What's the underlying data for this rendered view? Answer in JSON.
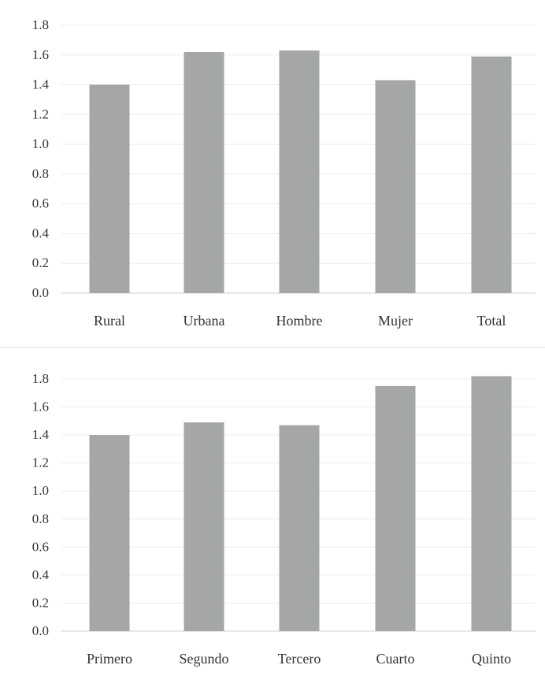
{
  "chart_data": [
    {
      "type": "bar",
      "categories": [
        "Rural",
        "Urbana",
        "Hombre",
        "Mujer",
        "Total"
      ],
      "values": [
        1.4,
        1.62,
        1.63,
        1.43,
        1.59
      ],
      "yticks": [
        "0.0",
        "0.2",
        "0.4",
        "0.6",
        "0.8",
        "1.0",
        "1.2",
        "1.4",
        "1.6",
        "1.8"
      ],
      "ylim": [
        0,
        1.8
      ],
      "grid": true,
      "bar_color": "#a5a6a8"
    },
    {
      "type": "bar",
      "categories": [
        "Primero",
        "Segundo",
        "Tercero",
        "Cuarto",
        "Quinto"
      ],
      "values": [
        1.4,
        1.49,
        1.47,
        1.75,
        1.82
      ],
      "yticks": [
        "0.0",
        "0.2",
        "0.4",
        "0.6",
        "0.8",
        "1.0",
        "1.2",
        "1.4",
        "1.6",
        "1.8"
      ],
      "ylim": [
        0,
        1.8
      ],
      "grid": true,
      "bar_color": "#a5a6a8"
    }
  ]
}
